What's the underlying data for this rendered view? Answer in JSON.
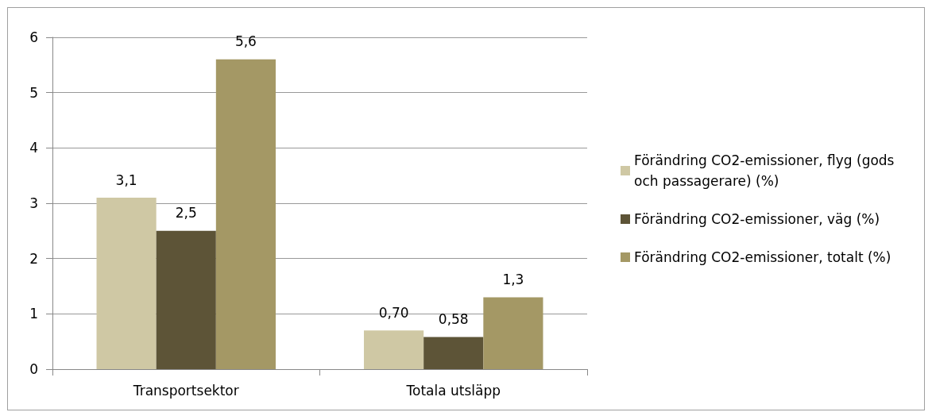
{
  "chart_data": {
    "type": "bar",
    "categories": [
      "Transportsektor",
      "Totala utsläpp"
    ],
    "series": [
      {
        "name": "Förändring CO2-emissioner, flyg (gods och passagerare) (%)",
        "color": "#cfc8a4",
        "values": [
          3.1,
          0.7
        ],
        "value_labels": [
          "3,1",
          "0,70"
        ]
      },
      {
        "name": "Förändring CO2-emissioner, väg (%)",
        "color": "#5d5437",
        "values": [
          2.5,
          0.58
        ],
        "value_labels": [
          "2,5",
          "0,58"
        ]
      },
      {
        "name": "Förändring CO2-emissioner, totalt (%)",
        "color": "#a49865",
        "values": [
          5.6,
          1.3
        ],
        "value_labels": [
          "5,6",
          "1,3"
        ]
      }
    ],
    "ylim": [
      0,
      6
    ],
    "yticks": [
      0,
      1,
      2,
      3,
      4,
      5,
      6
    ],
    "grid": "y",
    "legend": "right"
  }
}
